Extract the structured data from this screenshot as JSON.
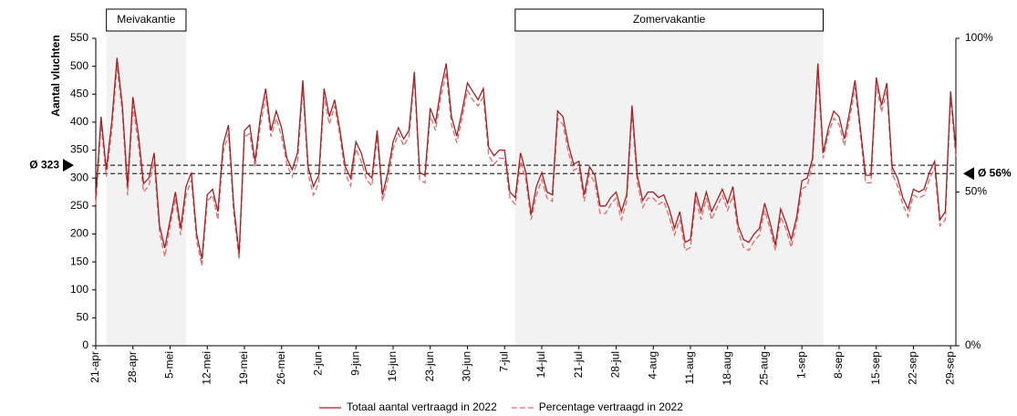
{
  "chart_data": {
    "type": "line",
    "ylabel": "Aantal vluchten",
    "categories": [
      "21-apr",
      null,
      null,
      null,
      null,
      null,
      null,
      "28-apr",
      null,
      null,
      null,
      null,
      null,
      null,
      "5-mei",
      null,
      null,
      null,
      null,
      null,
      null,
      "12-mei",
      null,
      null,
      null,
      null,
      null,
      null,
      "19-mei",
      null,
      null,
      null,
      null,
      null,
      null,
      "26-mei",
      null,
      null,
      null,
      null,
      null,
      null,
      "2-jun",
      null,
      null,
      null,
      null,
      null,
      null,
      "9-jun",
      null,
      null,
      null,
      null,
      null,
      null,
      "16-jun",
      null,
      null,
      null,
      null,
      null,
      null,
      "23-jun",
      null,
      null,
      null,
      null,
      null,
      null,
      "30-jun",
      null,
      null,
      null,
      null,
      null,
      null,
      "7-jul",
      null,
      null,
      null,
      null,
      null,
      null,
      "14-jul",
      null,
      null,
      null,
      null,
      null,
      null,
      "21-jul",
      null,
      null,
      null,
      null,
      null,
      null,
      "28-jul",
      null,
      null,
      null,
      null,
      null,
      null,
      "4-aug",
      null,
      null,
      null,
      null,
      null,
      null,
      "11-aug",
      null,
      null,
      null,
      null,
      null,
      null,
      "18-aug",
      null,
      null,
      null,
      null,
      null,
      null,
      "25-aug",
      null,
      null,
      null,
      null,
      null,
      null,
      "1-sep",
      null,
      null,
      null,
      null,
      null,
      null,
      "8-sep",
      null,
      null,
      null,
      null,
      null,
      null,
      "15-sep",
      null,
      null,
      null,
      null,
      null,
      null,
      "22-sep",
      null,
      null,
      null,
      null,
      null,
      null,
      "29-sep",
      null
    ],
    "series": [
      {
        "name": "Totaal aantal vertraagd in 2022",
        "color": "#a31f24",
        "dash": false,
        "values": [
          265,
          410,
          315,
          400,
          515,
          430,
          285,
          445,
          380,
          290,
          300,
          345,
          215,
          175,
          225,
          275,
          210,
          285,
          310,
          200,
          155,
          270,
          280,
          240,
          360,
          395,
          250,
          165,
          385,
          395,
          330,
          410,
          460,
          385,
          420,
          390,
          335,
          315,
          345,
          475,
          320,
          285,
          305,
          460,
          410,
          440,
          385,
          320,
          300,
          365,
          345,
          310,
          300,
          385,
          270,
          310,
          365,
          390,
          370,
          385,
          490,
          310,
          305,
          425,
          400,
          460,
          505,
          410,
          375,
          420,
          470,
          455,
          440,
          460,
          355,
          340,
          350,
          350,
          275,
          265,
          345,
          310,
          235,
          285,
          310,
          275,
          270,
          420,
          410,
          360,
          325,
          330,
          270,
          320,
          305,
          250,
          250,
          265,
          275,
          240,
          270,
          430,
          305,
          260,
          275,
          275,
          265,
          270,
          245,
          210,
          240,
          185,
          190,
          275,
          240,
          275,
          240,
          260,
          280,
          255,
          285,
          215,
          190,
          185,
          200,
          210,
          255,
          220,
          180,
          245,
          220,
          190,
          230,
          295,
          300,
          335,
          505,
          345,
          390,
          420,
          410,
          370,
          420,
          475,
          390,
          305,
          305,
          480,
          430,
          470,
          320,
          300,
          265,
          245,
          280,
          275,
          280,
          310,
          330,
          225,
          240,
          455,
          350
        ]
      },
      {
        "name": "Percentage vertraagd in 2022",
        "color": "#e06a6a",
        "dash": true,
        "axis": "y2",
        "values": [
          46,
          72,
          55,
          70,
          91,
          76,
          49,
          78,
          66,
          50,
          52,
          60,
          37,
          29,
          39,
          48,
          36,
          49,
          54,
          34,
          26,
          47,
          49,
          41,
          63,
          69,
          43,
          28,
          68,
          69,
          58,
          72,
          81,
          68,
          74,
          68,
          59,
          55,
          60,
          84,
          56,
          49,
          53,
          81,
          72,
          78,
          68,
          56,
          52,
          64,
          60,
          54,
          52,
          68,
          47,
          54,
          64,
          69,
          65,
          68,
          87,
          54,
          53,
          75,
          70,
          81,
          89,
          72,
          66,
          74,
          83,
          80,
          78,
          81,
          62,
          59,
          61,
          61,
          48,
          46,
          60,
          54,
          41,
          49,
          54,
          48,
          47,
          74,
          72,
          63,
          57,
          58,
          47,
          56,
          53,
          43,
          43,
          46,
          48,
          41,
          47,
          76,
          53,
          45,
          48,
          48,
          46,
          47,
          42,
          36,
          41,
          31,
          32,
          48,
          41,
          48,
          41,
          45,
          49,
          44,
          49,
          37,
          32,
          31,
          34,
          36,
          44,
          38,
          31,
          42,
          38,
          32,
          40,
          51,
          52,
          59,
          89,
          61,
          69,
          74,
          72,
          65,
          74,
          84,
          69,
          53,
          53,
          85,
          76,
          83,
          56,
          52,
          46,
          42,
          49,
          48,
          49,
          54,
          58,
          39,
          41,
          81,
          61
        ]
      }
    ],
    "ylim": [
      0,
      550
    ],
    "yticks": [
      0,
      50,
      100,
      150,
      200,
      250,
      300,
      350,
      400,
      450,
      500,
      550
    ],
    "y2lim": [
      0,
      100
    ],
    "y2ticks": [
      {
        "value": 0,
        "label": "0%"
      },
      {
        "value": 50,
        "label": "50%"
      },
      {
        "value": 100,
        "label": "100%"
      }
    ],
    "averages": [
      {
        "value": 323,
        "label": "Ø 323",
        "axis": "y"
      },
      {
        "value": 56,
        "label": "Ø 56%",
        "axis": "y2"
      }
    ],
    "periods": [
      {
        "label": "Meivakantie",
        "start": 2,
        "end": 17
      },
      {
        "label": "Zomervakantie",
        "start": 79,
        "end": 137
      }
    ],
    "legend": "bottom"
  }
}
